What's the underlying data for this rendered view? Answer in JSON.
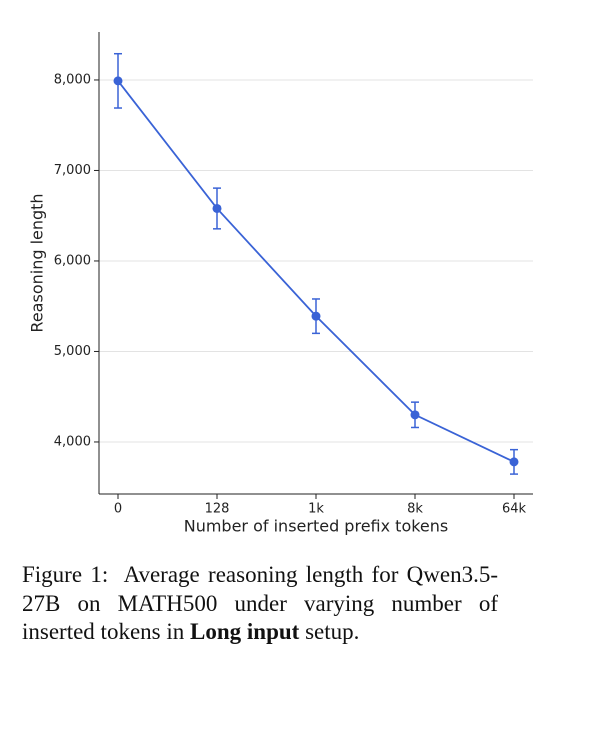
{
  "chart_data": {
    "type": "line",
    "x_label": "Number of inserted prefix tokens",
    "y_label": "Reasoning length",
    "categories": [
      "0",
      "128",
      "1k",
      "8k",
      "64k"
    ],
    "series": [
      {
        "color": "#3a63d6",
        "values": [
          7990,
          6580,
          5390,
          4300,
          3780
        ],
        "errors": [
          300,
          225,
          190,
          140,
          135
        ]
      }
    ],
    "ylim": [
      3425,
      8530
    ],
    "yticks": [
      {
        "value": 4000,
        "label": "4,000"
      },
      {
        "value": 5000,
        "label": "5,000"
      },
      {
        "value": 6000,
        "label": "6,000"
      },
      {
        "value": 7000,
        "label": "7,000"
      },
      {
        "value": 8000,
        "label": "8,000"
      }
    ],
    "grid": true
  },
  "caption": {
    "label": "Figure 1:",
    "text": "Average reasoning length for Qwen3.5-27B on MATH500 under varying number of inserted tokens in",
    "bold": "Long input",
    "end": "setup."
  }
}
